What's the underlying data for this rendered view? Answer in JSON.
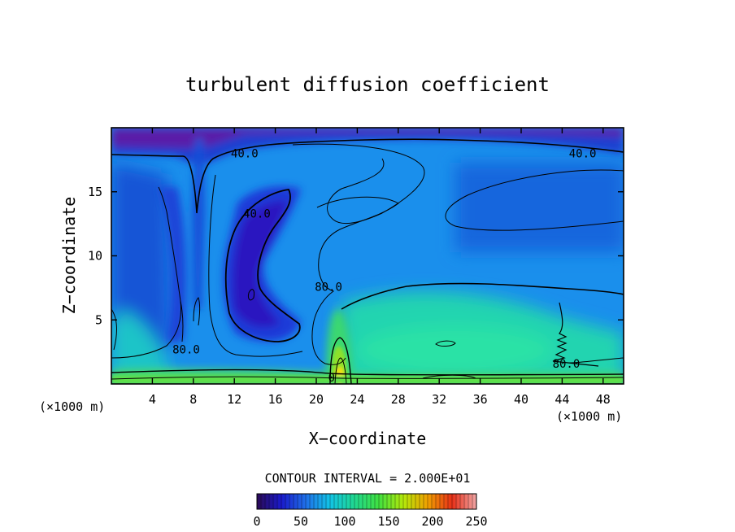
{
  "chart_data": {
    "type": "heatmap",
    "title": "turbulent diffusion coefficient",
    "xlabel": "X−coordinate",
    "ylabel": "Z−coordinate",
    "x_unit_left": "(×1000 m)",
    "x_unit_right": "(×1000 m)",
    "xlim": [
      0,
      50
    ],
    "ylim": [
      0,
      20
    ],
    "x_ticks": [
      4,
      8,
      12,
      16,
      20,
      24,
      28,
      32,
      36,
      40,
      44,
      48
    ],
    "y_ticks": [
      5,
      10,
      15
    ],
    "contour_interval_text": "CONTOUR INTERVAL = 2.000E+01",
    "contour_labels": [
      {
        "text": "40.0",
        "x": 13.0,
        "y": 18.0
      },
      {
        "text": "40.0",
        "x": 46.0,
        "y": 18.0
      },
      {
        "text": "40.0",
        "x": 14.2,
        "y": 13.3
      },
      {
        "text": "80.0",
        "x": 21.2,
        "y": 7.6
      },
      {
        "text": "80.0",
        "x": 7.3,
        "y": 2.7
      },
      {
        "text": "80.0",
        "x": 44.4,
        "y": 1.6
      },
      {
        "text": "0",
        "x": 21.5,
        "y": 0.5
      }
    ],
    "colorbar": {
      "range": [
        0,
        250
      ],
      "ticks": [
        0,
        50,
        100,
        150,
        200,
        250
      ],
      "colors": [
        "#2b0a55",
        "#1a1acc",
        "#1f6fe8",
        "#12c4e6",
        "#20d890",
        "#40e040",
        "#b4e80a",
        "#f0a000",
        "#e83018",
        "#f0a6a6"
      ]
    },
    "field_colors": {
      "low": "#3a14b0",
      "mid_low": "#1a5ae6",
      "mid": "#1a95f0",
      "high": "#26dcae",
      "peak": "#f0e80a"
    }
  }
}
